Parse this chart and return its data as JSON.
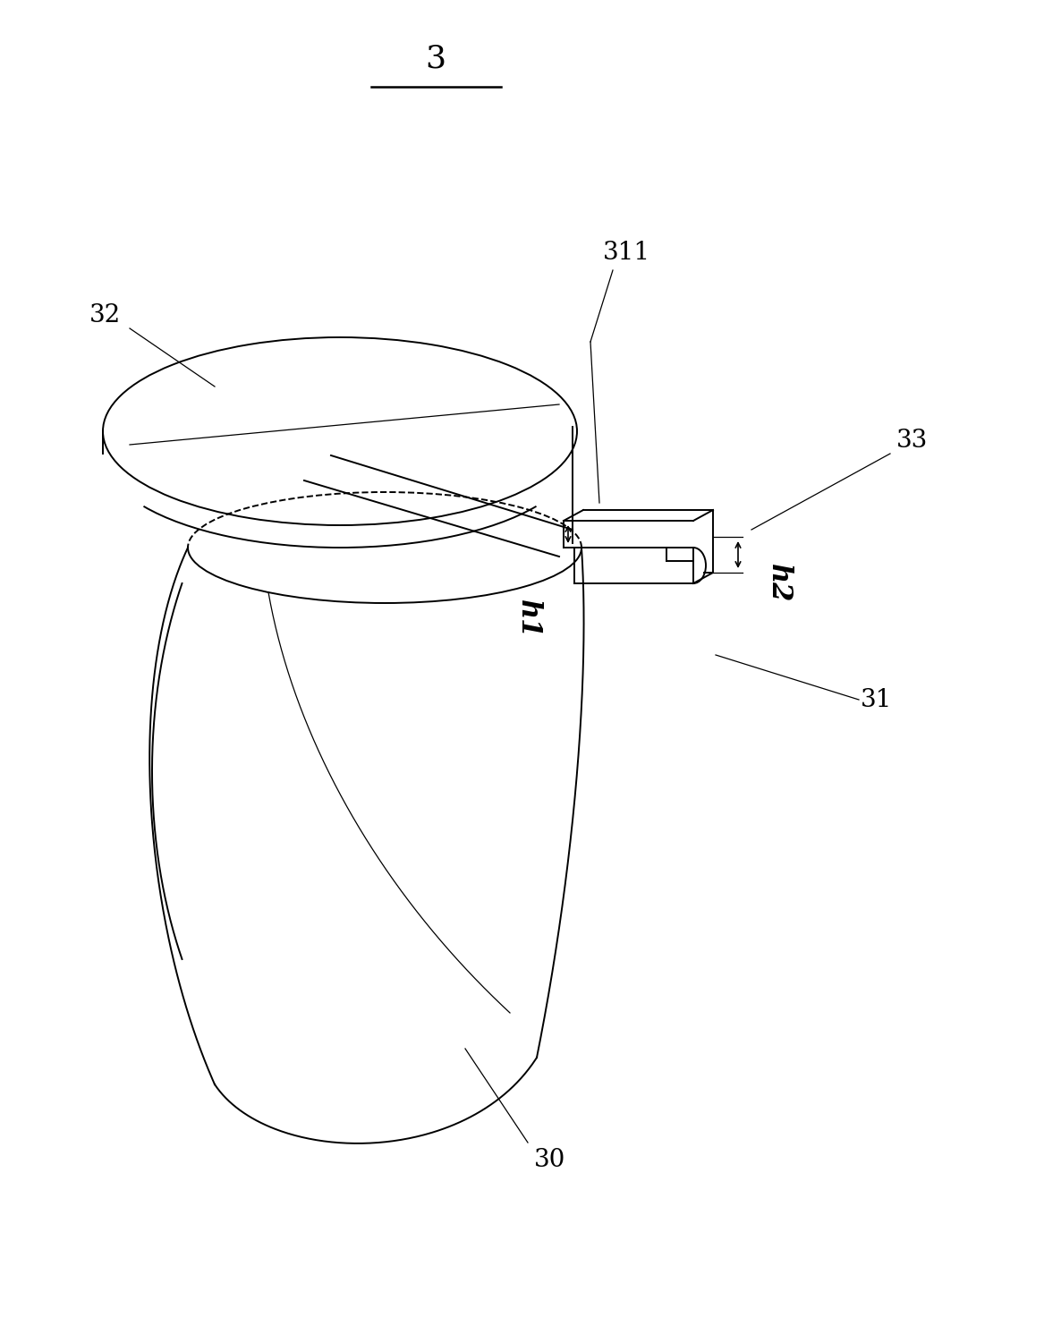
{
  "bg_color": "#ffffff",
  "line_color": "#000000",
  "lw": 1.4,
  "tlw": 0.9,
  "fig_width": 11.67,
  "fig_height": 14.82,
  "label_fontsize": 20,
  "label_3_fontsize": 26
}
